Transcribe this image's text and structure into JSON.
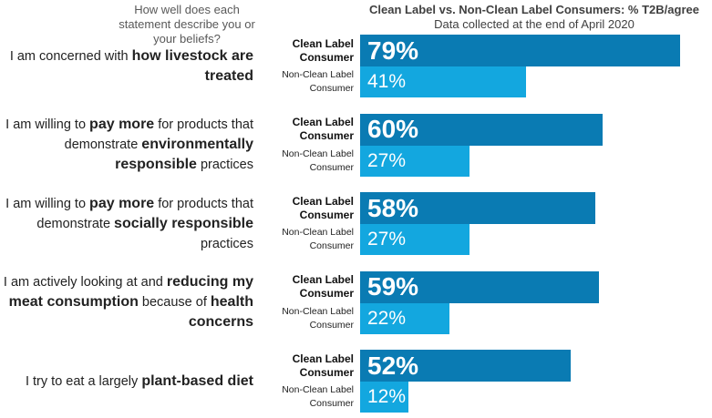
{
  "question_header": "How well does each statement describe you or your beliefs?",
  "colors": {
    "clean": "#0a7bb3",
    "non_clean": "#13a7df"
  },
  "chart_data": {
    "type": "bar",
    "orientation": "horizontal",
    "title": "Clean Label vs. Non-Clean Label Consumers: % T2B/agree",
    "subtitle": "Data collected at the end of April 2020",
    "value_suffix": "%",
    "xlim": [
      0,
      100
    ],
    "categories": [
      [
        {
          "text": "I am concerned with ",
          "bold": false
        },
        {
          "text": "how livestock are treated",
          "bold": true
        }
      ],
      [
        {
          "text": "I am willing to ",
          "bold": false
        },
        {
          "text": "pay more",
          "bold": true
        },
        {
          "text": " for products that demonstrate ",
          "bold": false
        },
        {
          "text": "environmentally responsible",
          "bold": true
        },
        {
          "text": " practices",
          "bold": false
        }
      ],
      [
        {
          "text": "I am willing to ",
          "bold": false
        },
        {
          "text": "pay more",
          "bold": true
        },
        {
          "text": " for products that demonstrate ",
          "bold": false
        },
        {
          "text": "socially responsible",
          "bold": true
        },
        {
          "text": " practices",
          "bold": false
        }
      ],
      [
        {
          "text": "I am actively looking at and ",
          "bold": false
        },
        {
          "text": "reducing my meat consumption",
          "bold": true
        },
        {
          "text": " because of ",
          "bold": false
        },
        {
          "text": "health concerns",
          "bold": true
        }
      ],
      [
        {
          "text": "I try to eat a largely ",
          "bold": false
        },
        {
          "text": "plant-based diet",
          "bold": true
        }
      ]
    ],
    "series": [
      {
        "name": "Clean Label Consumer",
        "values": [
          79,
          60,
          58,
          59,
          52
        ]
      },
      {
        "name": "Non-Clean Label Consumer",
        "values": [
          41,
          27,
          27,
          22,
          12
        ]
      }
    ]
  }
}
